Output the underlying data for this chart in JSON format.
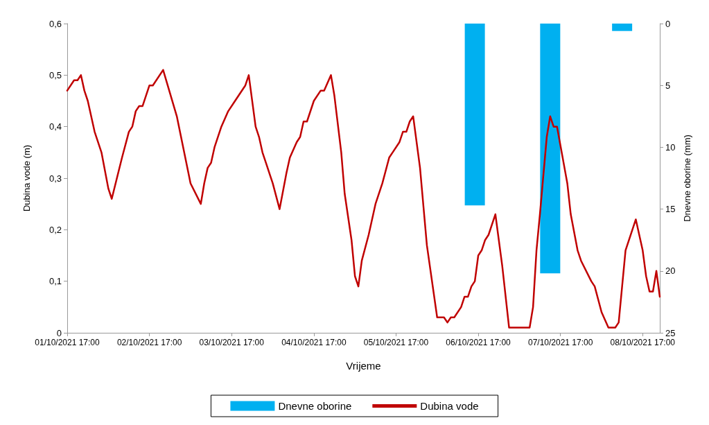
{
  "chart_data": {
    "type": "line",
    "xlabel": "Vrijeme",
    "ylabel": "Dubina vode (m)",
    "y2label": "Dnevne oborine (mm)",
    "xlim": [
      "2021-10-01T17:00",
      "2021-10-08T22:00"
    ],
    "xticks": [
      {
        "value": "2021-10-01T17:00",
        "label": "01/10/2021 17:00"
      },
      {
        "value": "2021-10-02T17:00",
        "label": "02/10/2021 17:00"
      },
      {
        "value": "2021-10-03T17:00",
        "label": "03/10/2021 17:00"
      },
      {
        "value": "2021-10-04T17:00",
        "label": "04/10/2021 17:00"
      },
      {
        "value": "2021-10-05T17:00",
        "label": "05/10/2021 17:00"
      },
      {
        "value": "2021-10-06T17:00",
        "label": "06/10/2021 17:00"
      },
      {
        "value": "2021-10-07T17:00",
        "label": "07/10/2021 17:00"
      },
      {
        "value": "2021-10-08T17:00",
        "label": "08/10/2021 17:00"
      }
    ],
    "ylim": [
      0,
      0.6
    ],
    "yticks": [
      0,
      {
        "value": 0.1,
        "label": "0,1"
      },
      {
        "value": 0.2,
        "label": "0,2"
      },
      {
        "value": 0.3,
        "label": "0,3"
      },
      {
        "value": 0.4,
        "label": "0,4"
      },
      {
        "value": 0.5,
        "label": "0,5"
      },
      {
        "value": 0.6,
        "label": "0,6"
      }
    ],
    "y2lim": [
      25,
      0
    ],
    "y2ticks": [
      0,
      5,
      10,
      15,
      20,
      25
    ],
    "grid": false,
    "legend": "bottom",
    "marker": "none",
    "line_style": "solid",
    "series": [
      {
        "name": "Dnevne oborine",
        "type": "bar",
        "axis": "y2",
        "color": "#00b0f0",
        "x": [
          "2021-10-06T16:00",
          "2021-10-07T14:00",
          "2021-10-08T11:00"
        ],
        "values": [
          14.7,
          20.2,
          0.6
        ]
      },
      {
        "name": "Dubina vode",
        "color": "#c00000",
        "x": [
          "2021-10-01T17:00",
          "2021-10-01T19:00",
          "2021-10-01T20:00",
          "2021-10-01T21:00",
          "2021-10-01T22:00",
          "2021-10-01T23:00",
          "2021-10-02T01:00",
          "2021-10-02T03:00",
          "2021-10-02T05:00",
          "2021-10-02T06:00",
          "2021-10-02T09:00",
          "2021-10-02T11:00",
          "2021-10-02T12:00",
          "2021-10-02T13:00",
          "2021-10-02T14:00",
          "2021-10-02T15:00",
          "2021-10-02T17:00",
          "2021-10-02T18:00",
          "2021-10-02T21:00",
          "2021-10-03T01:00",
          "2021-10-03T05:00",
          "2021-10-03T08:00",
          "2021-10-03T09:00",
          "2021-10-03T10:00",
          "2021-10-03T11:00",
          "2021-10-03T12:00",
          "2021-10-03T14:00",
          "2021-10-03T16:00",
          "2021-10-03T18:00",
          "2021-10-03T21:00",
          "2021-10-03T22:00",
          "2021-10-04T00:00",
          "2021-10-04T01:00",
          "2021-10-04T02:00",
          "2021-10-04T03:00",
          "2021-10-04T05:00",
          "2021-10-04T07:00",
          "2021-10-04T09:00",
          "2021-10-04T10:00",
          "2021-10-04T12:00",
          "2021-10-04T13:00",
          "2021-10-04T14:00",
          "2021-10-04T15:00",
          "2021-10-04T17:00",
          "2021-10-04T19:00",
          "2021-10-04T20:00",
          "2021-10-04T22:00",
          "2021-10-04T23:00",
          "2021-10-05T01:00",
          "2021-10-05T02:00",
          "2021-10-05T04:00",
          "2021-10-05T05:00",
          "2021-10-05T06:00",
          "2021-10-05T07:00",
          "2021-10-05T09:00",
          "2021-10-05T11:00",
          "2021-10-05T13:00",
          "2021-10-05T15:00",
          "2021-10-05T16:00",
          "2021-10-05T18:00",
          "2021-10-05T19:00",
          "2021-10-05T20:00",
          "2021-10-05T21:00",
          "2021-10-05T22:00",
          "2021-10-06T00:00",
          "2021-10-06T02:00",
          "2021-10-06T05:00",
          "2021-10-06T07:00",
          "2021-10-06T08:00",
          "2021-10-06T09:00",
          "2021-10-06T10:00",
          "2021-10-06T12:00",
          "2021-10-06T13:00",
          "2021-10-06T14:00",
          "2021-10-06T15:00",
          "2021-10-06T16:00",
          "2021-10-06T17:00",
          "2021-10-06T18:00",
          "2021-10-06T19:00",
          "2021-10-06T20:00",
          "2021-10-06T22:00",
          "2021-10-07T00:00",
          "2021-10-07T02:00",
          "2021-10-07T08:00",
          "2021-10-07T09:00",
          "2021-10-07T10:00",
          "2021-10-07T11:00",
          "2021-10-07T13:00",
          "2021-10-07T14:00",
          "2021-10-07T15:00",
          "2021-10-07T16:00",
          "2021-10-07T19:00",
          "2021-10-07T20:00",
          "2021-10-07T22:00",
          "2021-10-07T23:00",
          "2021-10-08T02:00",
          "2021-10-08T03:00",
          "2021-10-08T05:00",
          "2021-10-08T07:00",
          "2021-10-08T09:00",
          "2021-10-08T10:00",
          "2021-10-08T12:00",
          "2021-10-08T15:00",
          "2021-10-08T17:00",
          "2021-10-08T18:00",
          "2021-10-08T19:00",
          "2021-10-08T20:00",
          "2021-10-08T21:00",
          "2021-10-08T22:00"
        ],
        "values": [
          0.47,
          0.49,
          0.49,
          0.5,
          0.47,
          0.45,
          0.39,
          0.35,
          0.28,
          0.26,
          0.34,
          0.39,
          0.4,
          0.43,
          0.44,
          0.44,
          0.48,
          0.48,
          0.51,
          0.42,
          0.29,
          0.25,
          0.29,
          0.32,
          0.33,
          0.36,
          0.4,
          0.43,
          0.45,
          0.48,
          0.5,
          0.4,
          0.38,
          0.35,
          0.33,
          0.29,
          0.24,
          0.31,
          0.34,
          0.37,
          0.38,
          0.41,
          0.41,
          0.45,
          0.47,
          0.47,
          0.5,
          0.46,
          0.35,
          0.27,
          0.18,
          0.11,
          0.09,
          0.14,
          0.19,
          0.25,
          0.29,
          0.34,
          0.35,
          0.37,
          0.39,
          0.39,
          0.41,
          0.42,
          0.32,
          0.17,
          0.03,
          0.03,
          0.02,
          0.03,
          0.03,
          0.05,
          0.07,
          0.07,
          0.09,
          0.1,
          0.15,
          0.16,
          0.18,
          0.19,
          0.23,
          0.13,
          0.01,
          0.01,
          0.05,
          0.16,
          0.23,
          0.38,
          0.42,
          0.4,
          0.4,
          0.29,
          0.23,
          0.16,
          0.14,
          0.1,
          0.09,
          0.04,
          0.01,
          0.01,
          0.02,
          0.16,
          0.22,
          0.16,
          0.11,
          0.08,
          0.08,
          0.12,
          0.07
        ]
      }
    ]
  }
}
